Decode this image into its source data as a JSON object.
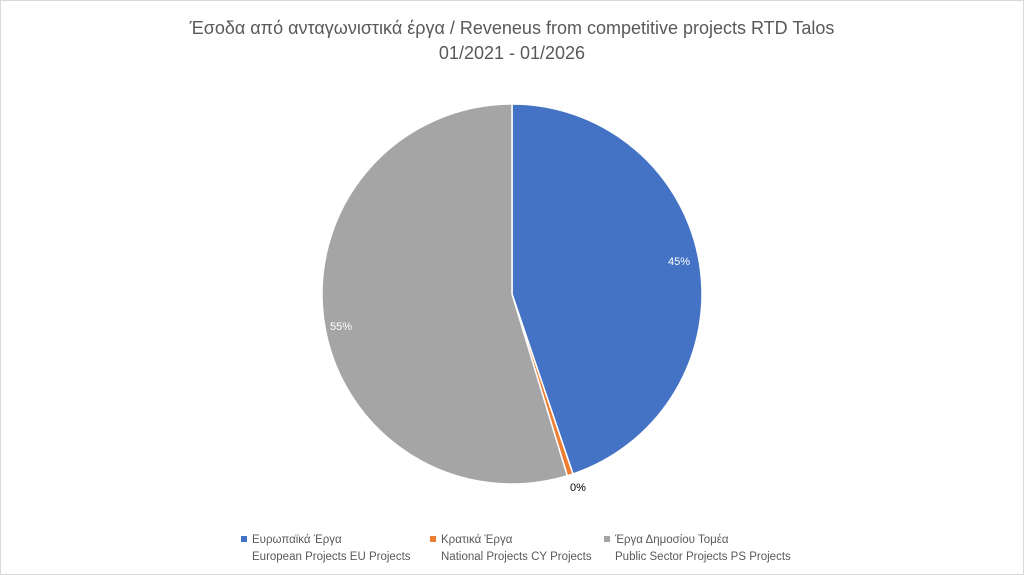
{
  "chart_data": {
    "type": "pie",
    "title": "Έσοδα από ανταγωνιστικά έργα / Reveneus from competitive projects RTD Talos",
    "subtitle": "01/2021 - 01/2026",
    "legend_position": "bottom",
    "slices": [
      {
        "label_line1": "Ευρωπαϊκά Έργα",
        "label_line2": "European Projects EU Projects",
        "value": 44.8,
        "data_label": "45%",
        "color": "#4472C4",
        "label_color": "#ffffff"
      },
      {
        "label_line1": "Κρατικά Έργα",
        "label_line2": "National Projects CY Projects",
        "value": 0.5,
        "data_label": "0%",
        "color": "#ED7D31",
        "label_color": "#000000"
      },
      {
        "label_line1": "Έργα Δημοσίου Τομέα",
        "label_line2": "Public Sector Projects PS Projects",
        "value": 54.7,
        "data_label": "55%",
        "color": "#A5A5A5",
        "label_color": "#ffffff"
      }
    ]
  }
}
